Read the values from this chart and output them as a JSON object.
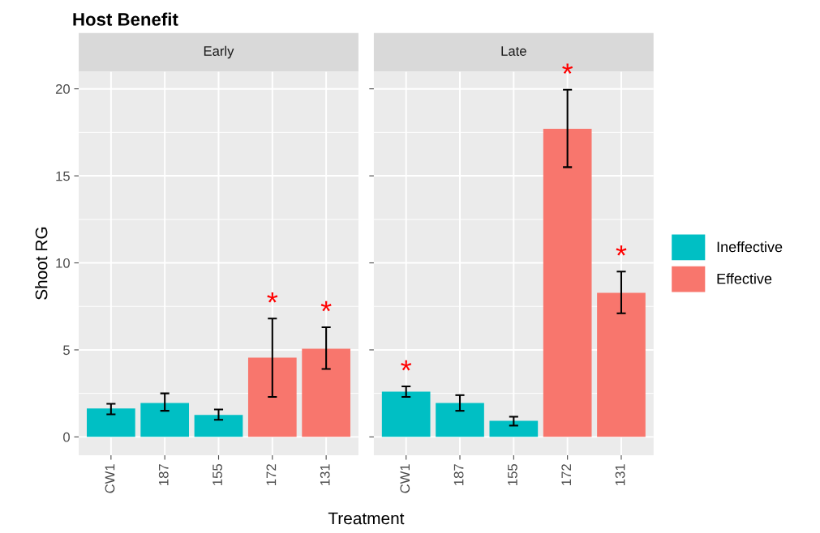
{
  "chart_data": [
    {
      "type": "bar",
      "title": "Early",
      "ylabel": "Shoot RG",
      "xlabel": "Treatment",
      "categories": [
        "CW1",
        "187",
        "155",
        "172",
        "131"
      ],
      "series": [
        {
          "name": "Ineffective",
          "color": "#00bfc4",
          "values": [
            1.63,
            1.95,
            1.26,
            null,
            null
          ],
          "errors": [
            [
              1.3,
              1.9
            ],
            [
              1.5,
              2.5
            ],
            [
              0.98,
              1.58
            ],
            null,
            null
          ]
        },
        {
          "name": "Effective",
          "color": "#f8766d",
          "values": [
            null,
            null,
            null,
            4.56,
            5.07
          ],
          "errors": [
            null,
            null,
            null,
            [
              2.3,
              6.8
            ],
            [
              3.9,
              6.3
            ]
          ]
        }
      ],
      "ylim": [
        -1.05,
        21
      ],
      "yticks": [
        0,
        5,
        10,
        15,
        20
      ],
      "grid": true,
      "legend": "right",
      "annotations": [
        "Host Benefit",
        {
          "text": "*",
          "x": "172",
          "y": 6.8
        },
        {
          "text": "*",
          "x": "131",
          "y": 6.3
        }
      ]
    },
    {
      "type": "bar",
      "title": "Late",
      "categories": [
        "CW1",
        "187",
        "155",
        "172",
        "131"
      ],
      "series": [
        {
          "name": "Ineffective",
          "color": "#00bfc4",
          "values": [
            2.6,
            1.95,
            0.93,
            null,
            null
          ],
          "errors": [
            [
              2.3,
              2.9
            ],
            [
              1.5,
              2.4
            ],
            [
              0.65,
              1.16
            ],
            null,
            null
          ]
        },
        {
          "name": "Effective",
          "color": "#f8766d",
          "values": [
            null,
            null,
            null,
            17.7,
            8.28
          ],
          "errors": [
            null,
            null,
            null,
            [
              15.5,
              19.95
            ],
            [
              7.1,
              9.5
            ]
          ]
        }
      ],
      "ylim": [
        -1.05,
        21
      ],
      "yticks": [
        0,
        5,
        10,
        15,
        20
      ],
      "grid": true,
      "tick_labels": "x",
      "annotations": [
        {
          "text": "*",
          "x": "CW1",
          "y": 2.9
        },
        {
          "text": "*",
          "x": "172",
          "y": 19.95
        },
        {
          "text": "*",
          "x": "131",
          "y": 9.5
        }
      ]
    }
  ]
}
